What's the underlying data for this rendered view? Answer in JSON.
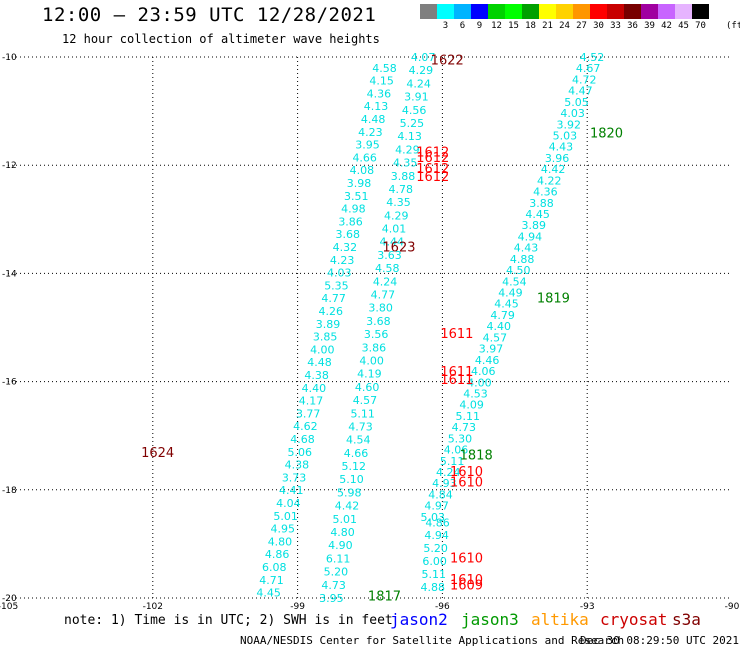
{
  "header": {
    "title": "12:00 – 23:59 UTC 12/28/2021",
    "subtitle": "12 hour collection of altimeter wave heights"
  },
  "legend": {
    "unit": "(ft)",
    "bins": [
      {
        "label": "",
        "color": "#7f7f7f"
      },
      {
        "label": "3",
        "color": "#00ffff"
      },
      {
        "label": "6",
        "color": "#00b4ff"
      },
      {
        "label": "9",
        "color": "#0000ff"
      },
      {
        "label": "12",
        "color": "#00d200"
      },
      {
        "label": "15",
        "color": "#00ff00"
      },
      {
        "label": "18",
        "color": "#00a000"
      },
      {
        "label": "21",
        "color": "#ffff00"
      },
      {
        "label": "24",
        "color": "#ffd200"
      },
      {
        "label": "27",
        "color": "#ff9600"
      },
      {
        "label": "30",
        "color": "#ff0000"
      },
      {
        "label": "33",
        "color": "#c80000"
      },
      {
        "label": "36",
        "color": "#780000"
      },
      {
        "label": "39",
        "color": "#a000a0"
      },
      {
        "label": "42",
        "color": "#c864ff"
      },
      {
        "label": "45",
        "color": "#e6b4ff"
      },
      {
        "label": "70",
        "color": "#000000"
      }
    ]
  },
  "axes": {
    "lon_ticks": [
      -105,
      -102,
      -99,
      -96,
      -93,
      -90
    ],
    "lat_ticks": [
      -10,
      -12,
      -14,
      -16,
      -18,
      -20
    ],
    "lon_range": [
      -105,
      -90
    ],
    "lat_range": [
      -20,
      -10
    ]
  },
  "colors": {
    "wave_text": "#00e0e0",
    "jason2": "#0000ff",
    "jason3": "#009900",
    "altika": "#ff9900",
    "cryosat": "#cc0000",
    "s3a": "#800000",
    "time_red": "#ff0000",
    "time_dark": "#800000",
    "time_green": "#008000"
  },
  "wave_tracks": [
    {
      "name": "track-a",
      "values": [
        "4.07",
        "4.29",
        "4.24",
        "3.91",
        "4.56",
        "5.25",
        "4.13",
        "4.29",
        "4.35",
        "3.88",
        "4.78",
        "4.35",
        "4.29",
        "4.01",
        "4.44",
        "3.63",
        "4.58",
        "4.24",
        "4.77",
        "3.80",
        "3.68",
        "3.56",
        "3.86",
        "4.00",
        "4.19",
        "4.60",
        "4.57",
        "5.11",
        "4.73",
        "4.54",
        "4.66",
        "5.12",
        "5.10",
        "5.98",
        "4.42",
        "5.01",
        "4.80",
        "4.90",
        "6.11",
        "5.20",
        "4.73",
        "3.95"
      ],
      "lon_start": -96.4,
      "lat_start": -10.0,
      "lon_end": -98.3,
      "lat_end": -20.0
    },
    {
      "name": "track-b",
      "values": [
        "4.58",
        "4.15",
        "4.36",
        "4.13",
        "4.48",
        "4.23",
        "3.95",
        "4.66",
        "4.08",
        "3.98",
        "3.51",
        "4.98",
        "3.86",
        "3.68",
        "4.32",
        "4.23",
        "4.03",
        "5.35",
        "4.77",
        "4.26",
        "3.89",
        "3.85",
        "4.00",
        "4.48",
        "4.38",
        "4.40",
        "4.17",
        "3.77",
        "4.62",
        "4.68",
        "5.06",
        "4.38",
        "3.73",
        "4.41",
        "4.04",
        "5.01",
        "4.95",
        "4.80",
        "4.86",
        "6.08",
        "4.71",
        "4.45"
      ],
      "lon_start": -97.2,
      "lat_start": -10.2,
      "lon_end": -99.6,
      "lat_end": -19.9
    },
    {
      "name": "track-c",
      "values": [
        "4.52",
        "4.67",
        "4.72",
        "4.47",
        "5.05",
        "4.03",
        "3.92",
        "5.03",
        "4.43",
        "3.96",
        "4.42",
        "4.22",
        "4.36",
        "3.88",
        "4.45",
        "3.89",
        "4.94",
        "4.43",
        "4.88",
        "4.50",
        "4.54",
        "4.49",
        "4.45",
        "4.79",
        "4.40",
        "4.57",
        "3.97",
        "4.46",
        "4.06",
        "4.00",
        "4.53",
        "4.09",
        "5.11",
        "4.73",
        "5.30",
        "4.06",
        "5.11",
        "4.24",
        "4.93",
        "4.84",
        "4.97",
        "5.03"
      ],
      "lon_start": -92.9,
      "lat_start": -10.0,
      "lon_end": -96.2,
      "lat_end": -18.5
    },
    {
      "name": "track-d",
      "values": [
        "4.86",
        "4.94",
        "5.20",
        "6.00",
        "5.11",
        "4.88"
      ],
      "lon_start": -96.1,
      "lat_start": -18.6,
      "lon_end": -96.2,
      "lat_end": -19.8
    }
  ],
  "time_labels": [
    {
      "text": "1622",
      "lon": -95.9,
      "lat": -10.05,
      "color": "time_dark"
    },
    {
      "text": "1820",
      "lon": -92.6,
      "lat": -11.4,
      "color": "time_green"
    },
    {
      "text": "1612",
      "lon": -96.2,
      "lat": -11.75,
      "color": "time_red"
    },
    {
      "text": "1612",
      "lon": -96.2,
      "lat": -11.85,
      "color": "time_red"
    },
    {
      "text": "1612",
      "lon": -96.2,
      "lat": -12.05,
      "color": "time_red"
    },
    {
      "text": "1612",
      "lon": -96.2,
      "lat": -12.2,
      "color": "time_red"
    },
    {
      "text": "1623",
      "lon": -96.9,
      "lat": -13.5,
      "color": "time_dark"
    },
    {
      "text": "1819",
      "lon": -93.7,
      "lat": -14.45,
      "color": "time_green"
    },
    {
      "text": "1611",
      "lon": -95.7,
      "lat": -15.1,
      "color": "time_red"
    },
    {
      "text": "1611",
      "lon": -95.7,
      "lat": -15.8,
      "color": "time_red"
    },
    {
      "text": "1611",
      "lon": -95.7,
      "lat": -15.95,
      "color": "time_red"
    },
    {
      "text": "1624",
      "lon": -101.9,
      "lat": -17.3,
      "color": "time_dark"
    },
    {
      "text": "1818",
      "lon": -95.3,
      "lat": -17.35,
      "color": "time_green"
    },
    {
      "text": "1610",
      "lon": -95.5,
      "lat": -17.65,
      "color": "time_red"
    },
    {
      "text": "1610",
      "lon": -95.5,
      "lat": -17.85,
      "color": "time_red"
    },
    {
      "text": "1610",
      "lon": -95.5,
      "lat": -19.25,
      "color": "time_red"
    },
    {
      "text": "1610",
      "lon": -95.5,
      "lat": -19.65,
      "color": "time_red"
    },
    {
      "text": "1609",
      "lon": -95.5,
      "lat": -19.75,
      "color": "time_red"
    },
    {
      "text": "1817",
      "lon": -97.2,
      "lat": -19.95,
      "color": "time_green"
    }
  ],
  "note": "note: 1) Time is in UTC; 2) SWH is in feet",
  "satellites": [
    {
      "name": "jason2",
      "color_key": "jason2"
    },
    {
      "name": "jason3",
      "color_key": "jason3"
    },
    {
      "name": "altika",
      "color_key": "altika"
    },
    {
      "name": "cryosat",
      "color_key": "cryosat"
    },
    {
      "name": "s3a",
      "color_key": "s3a"
    }
  ],
  "footer": {
    "center": "NOAA/NESDIS Center for Satellite Applications and Research",
    "timestamp": "Dec 30 08:29:50 UTC 2021"
  }
}
